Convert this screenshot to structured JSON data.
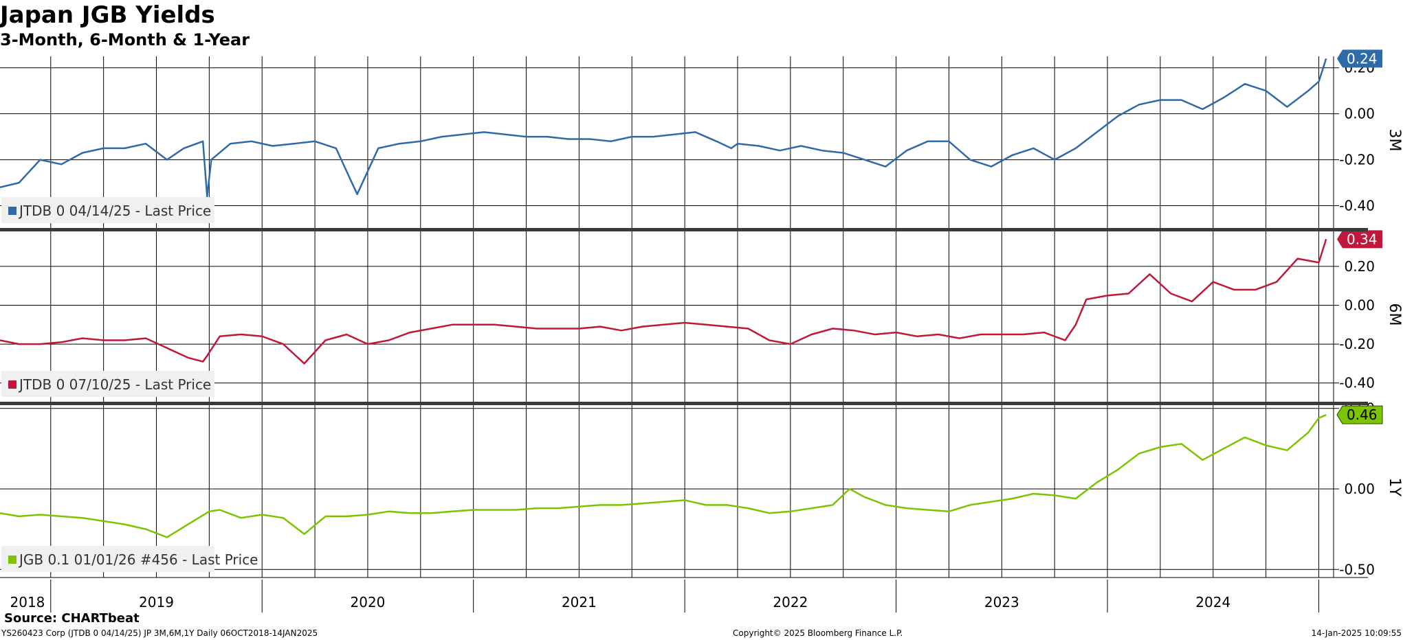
{
  "header": {
    "title": "Japan JGB Yields",
    "subtitle": "3-Month, 6-Month & 1-Year"
  },
  "footer": {
    "source": "Source: CHARTbeat",
    "left": "YS260423 Corp (JTDB 0 04/14/25) JP 3M,6M,1Y  Daily 06OCT2018-14JAN2025",
    "center": "Copyright© 2025 Bloomberg Finance L.P.",
    "right": "14-Jan-2025 10:09:55"
  },
  "chart_data": [
    {
      "type": "line",
      "panel_label": "3M",
      "color": "#2e6aa8",
      "ylim": [
        -0.5,
        0.25
      ],
      "yticks": [
        0.2,
        0.0,
        -0.2,
        -0.4
      ],
      "ytick_labels": [
        "0.20",
        "0.00",
        "-0.20",
        "-0.40"
      ],
      "last_value": 0.24,
      "last_value_label": "0.24",
      "series": [
        {
          "name": "JTDB 0 04/14/25 - Last Price",
          "x": [
            2018.76,
            2018.85,
            2018.95,
            2019.05,
            2019.15,
            2019.25,
            2019.35,
            2019.45,
            2019.55,
            2019.63,
            2019.72,
            2019.74,
            2019.76,
            2019.85,
            2019.95,
            2020.05,
            2020.15,
            2020.25,
            2020.35,
            2020.45,
            2020.55,
            2020.65,
            2020.75,
            2020.85,
            2020.95,
            2021.05,
            2021.15,
            2021.25,
            2021.35,
            2021.45,
            2021.55,
            2021.65,
            2021.75,
            2021.85,
            2021.95,
            2022.05,
            2022.15,
            2022.22,
            2022.25,
            2022.35,
            2022.45,
            2022.55,
            2022.65,
            2022.75,
            2022.85,
            2022.95,
            2023.05,
            2023.15,
            2023.25,
            2023.35,
            2023.45,
            2023.55,
            2023.65,
            2023.75,
            2023.85,
            2023.95,
            2024.05,
            2024.15,
            2024.25,
            2024.35,
            2024.45,
            2024.55,
            2024.65,
            2024.75,
            2024.85,
            2024.95,
            2025.0,
            2025.035
          ],
          "values": [
            -0.32,
            -0.3,
            -0.2,
            -0.22,
            -0.17,
            -0.15,
            -0.15,
            -0.13,
            -0.2,
            -0.15,
            -0.12,
            -0.36,
            -0.2,
            -0.13,
            -0.12,
            -0.14,
            -0.13,
            -0.12,
            -0.15,
            -0.35,
            -0.15,
            -0.13,
            -0.12,
            -0.1,
            -0.09,
            -0.08,
            -0.09,
            -0.1,
            -0.1,
            -0.11,
            -0.11,
            -0.12,
            -0.1,
            -0.1,
            -0.09,
            -0.08,
            -0.12,
            -0.15,
            -0.13,
            -0.14,
            -0.16,
            -0.14,
            -0.16,
            -0.17,
            -0.2,
            -0.23,
            -0.16,
            -0.12,
            -0.12,
            -0.2,
            -0.23,
            -0.18,
            -0.15,
            -0.2,
            -0.15,
            -0.08,
            -0.01,
            0.04,
            0.06,
            0.06,
            0.02,
            0.07,
            0.13,
            0.1,
            0.03,
            0.1,
            0.14,
            0.24
          ]
        }
      ]
    },
    {
      "type": "line",
      "panel_label": "6M",
      "color": "#c0173a",
      "ylim": [
        -0.5,
        0.38
      ],
      "yticks": [
        0.2,
        0.0,
        -0.2,
        -0.4
      ],
      "ytick_labels": [
        "0.20",
        "0.00",
        "-0.20",
        "-0.40"
      ],
      "last_value": 0.34,
      "last_value_label": "0.34",
      "series": [
        {
          "name": "JTDB 0 07/10/25 - Last Price",
          "x": [
            2018.76,
            2018.85,
            2018.95,
            2019.05,
            2019.15,
            2019.25,
            2019.35,
            2019.45,
            2019.55,
            2019.65,
            2019.72,
            2019.74,
            2019.8,
            2019.9,
            2020.0,
            2020.1,
            2020.2,
            2020.3,
            2020.4,
            2020.5,
            2020.6,
            2020.7,
            2020.8,
            2020.9,
            2021.0,
            2021.1,
            2021.2,
            2021.3,
            2021.4,
            2021.5,
            2021.6,
            2021.7,
            2021.8,
            2021.9,
            2022.0,
            2022.1,
            2022.2,
            2022.3,
            2022.4,
            2022.5,
            2022.6,
            2022.7,
            2022.8,
            2022.9,
            2023.0,
            2023.1,
            2023.2,
            2023.3,
            2023.4,
            2023.5,
            2023.6,
            2023.7,
            2023.8,
            2023.85,
            2023.9,
            2024.0,
            2024.1,
            2024.2,
            2024.3,
            2024.4,
            2024.5,
            2024.6,
            2024.7,
            2024.8,
            2024.9,
            2025.0,
            2025.035
          ],
          "values": [
            -0.18,
            -0.2,
            -0.2,
            -0.19,
            -0.17,
            -0.18,
            -0.18,
            -0.17,
            -0.22,
            -0.27,
            -0.29,
            -0.26,
            -0.16,
            -0.15,
            -0.16,
            -0.2,
            -0.3,
            -0.18,
            -0.15,
            -0.2,
            -0.18,
            -0.14,
            -0.12,
            -0.1,
            -0.1,
            -0.1,
            -0.11,
            -0.12,
            -0.12,
            -0.12,
            -0.11,
            -0.13,
            -0.11,
            -0.1,
            -0.09,
            -0.1,
            -0.11,
            -0.12,
            -0.18,
            -0.2,
            -0.15,
            -0.12,
            -0.13,
            -0.15,
            -0.14,
            -0.16,
            -0.15,
            -0.17,
            -0.15,
            -0.15,
            -0.15,
            -0.14,
            -0.18,
            -0.1,
            0.03,
            0.05,
            0.06,
            0.16,
            0.06,
            0.02,
            0.12,
            0.08,
            0.08,
            0.12,
            0.24,
            0.22,
            0.34
          ]
        }
      ]
    },
    {
      "type": "line",
      "panel_label": "1Y",
      "color": "#7cc400",
      "ylim": [
        -0.55,
        0.52
      ],
      "yticks": [
        0.5,
        0.0,
        -0.5
      ],
      "ytick_labels": [
        "0.50",
        "0.00",
        "-0.50"
      ],
      "last_value": 0.46,
      "last_value_label": "0.46",
      "series": [
        {
          "name": "JGB 0.1 01/01/26 #456 - Last Price",
          "x": [
            2018.76,
            2018.85,
            2018.95,
            2019.05,
            2019.15,
            2019.25,
            2019.35,
            2019.45,
            2019.55,
            2019.65,
            2019.75,
            2019.8,
            2019.9,
            2020.0,
            2020.1,
            2020.2,
            2020.3,
            2020.4,
            2020.5,
            2020.6,
            2020.7,
            2020.8,
            2020.9,
            2021.0,
            2021.1,
            2021.2,
            2021.3,
            2021.4,
            2021.5,
            2021.6,
            2021.7,
            2021.8,
            2021.9,
            2022.0,
            2022.1,
            2022.2,
            2022.3,
            2022.4,
            2022.5,
            2022.6,
            2022.7,
            2022.78,
            2022.85,
            2022.95,
            2023.05,
            2023.15,
            2023.25,
            2023.35,
            2023.45,
            2023.55,
            2023.65,
            2023.75,
            2023.85,
            2023.95,
            2024.05,
            2024.15,
            2024.25,
            2024.35,
            2024.45,
            2024.55,
            2024.65,
            2024.75,
            2024.85,
            2024.95,
            2025.0,
            2025.035
          ],
          "values": [
            -0.15,
            -0.17,
            -0.16,
            -0.17,
            -0.18,
            -0.2,
            -0.22,
            -0.25,
            -0.3,
            -0.22,
            -0.14,
            -0.13,
            -0.18,
            -0.16,
            -0.18,
            -0.28,
            -0.17,
            -0.17,
            -0.16,
            -0.14,
            -0.15,
            -0.15,
            -0.14,
            -0.13,
            -0.13,
            -0.13,
            -0.12,
            -0.12,
            -0.11,
            -0.1,
            -0.1,
            -0.09,
            -0.08,
            -0.07,
            -0.1,
            -0.1,
            -0.12,
            -0.15,
            -0.14,
            -0.12,
            -0.1,
            0.0,
            -0.05,
            -0.1,
            -0.12,
            -0.13,
            -0.14,
            -0.1,
            -0.08,
            -0.06,
            -0.03,
            -0.04,
            -0.06,
            0.04,
            0.12,
            0.22,
            0.26,
            0.28,
            0.18,
            0.25,
            0.32,
            0.27,
            0.24,
            0.35,
            0.44,
            0.46
          ]
        }
      ]
    }
  ],
  "x_axis": {
    "xlim": [
      2018.76,
      2025.07
    ],
    "year_labels": [
      {
        "label": "2018",
        "x": 2018.89
      },
      {
        "label": "2019",
        "x": 2019.5
      },
      {
        "label": "2020",
        "x": 2020.5
      },
      {
        "label": "2021",
        "x": 2021.5
      },
      {
        "label": "2022",
        "x": 2022.5
      },
      {
        "label": "2023",
        "x": 2023.5
      },
      {
        "label": "2024",
        "x": 2024.5
      }
    ],
    "year_boundaries": [
      2019.0,
      2020.0,
      2021.0,
      2022.0,
      2023.0,
      2024.0,
      2025.0
    ],
    "quarter_grid": [
      2018.75,
      2019.0,
      2019.25,
      2019.5,
      2019.75,
      2020.0,
      2020.25,
      2020.5,
      2020.75,
      2021.0,
      2021.25,
      2021.5,
      2021.75,
      2022.0,
      2022.25,
      2022.5,
      2022.75,
      2023.0,
      2023.25,
      2023.5,
      2023.75,
      2024.0,
      2024.25,
      2024.5,
      2024.75,
      2025.0
    ]
  }
}
